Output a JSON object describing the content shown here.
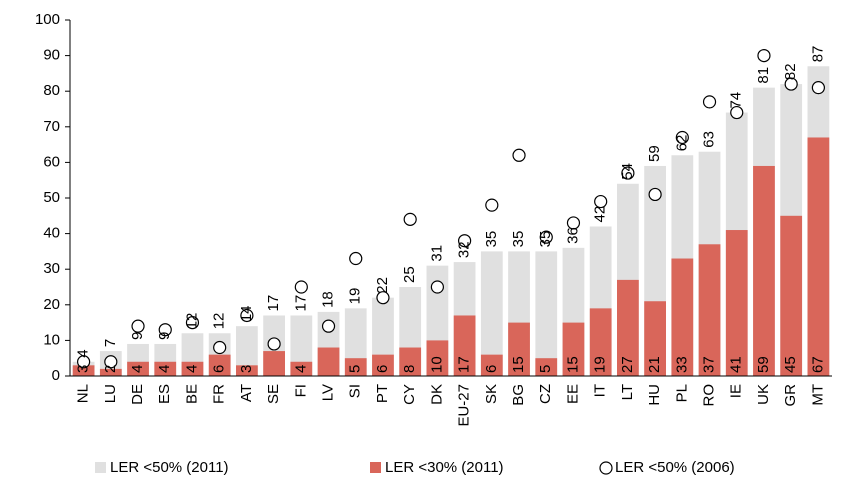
{
  "chart_data": {
    "type": "bar",
    "categories": [
      "NL",
      "LU",
      "DE",
      "ES",
      "BE",
      "FR",
      "AT",
      "SE",
      "FI",
      "LV",
      "SI",
      "PT",
      "CY",
      "DK",
      "EU-27",
      "SK",
      "BG",
      "CZ",
      "EE",
      "IT",
      "LT",
      "HU",
      "PL",
      "RO",
      "IE",
      "UK",
      "GR",
      "MT"
    ],
    "series": [
      {
        "name": "LER <50% (2011)",
        "color": "#e0e0e0",
        "style": "bar",
        "values": [
          4,
          7,
          9,
          9,
          12,
          12,
          14,
          17,
          17,
          18,
          19,
          22,
          25,
          31,
          32,
          35,
          35,
          35,
          36,
          42,
          54,
          59,
          62,
          63,
          74,
          81,
          82,
          87
        ]
      },
      {
        "name": "LER <30% (2011)",
        "color": "#d9665a",
        "style": "bar",
        "values": [
          3,
          2,
          4,
          4,
          4,
          6,
          3,
          7,
          4,
          8,
          5,
          6,
          8,
          10,
          17,
          6,
          15,
          5,
          15,
          19,
          27,
          21,
          33,
          37,
          41,
          59,
          45,
          67
        ],
        "value_labels": [
          "3",
          "2",
          "4",
          "4",
          "4",
          "6",
          "3",
          null,
          "4",
          null,
          "5",
          "6",
          "8",
          "10",
          "17",
          "6",
          "15",
          "5",
          "15",
          "19",
          "27",
          "21",
          "33",
          "37",
          "41",
          "59",
          "45",
          "67"
        ]
      },
      {
        "name": "LER <50% (2006)",
        "color": "#ffffff",
        "style": "circle",
        "values": [
          4,
          4,
          14,
          13,
          15,
          8,
          17,
          9,
          25,
          14,
          33,
          22,
          44,
          25,
          38,
          48,
          62,
          39,
          43,
          49,
          57,
          51,
          67,
          77,
          74,
          90,
          82,
          81
        ]
      }
    ],
    "ylim": [
      0,
      100
    ],
    "yticks": [
      0,
      10,
      20,
      30,
      40,
      50,
      60,
      70,
      80,
      90,
      100
    ],
    "grid": false
  }
}
